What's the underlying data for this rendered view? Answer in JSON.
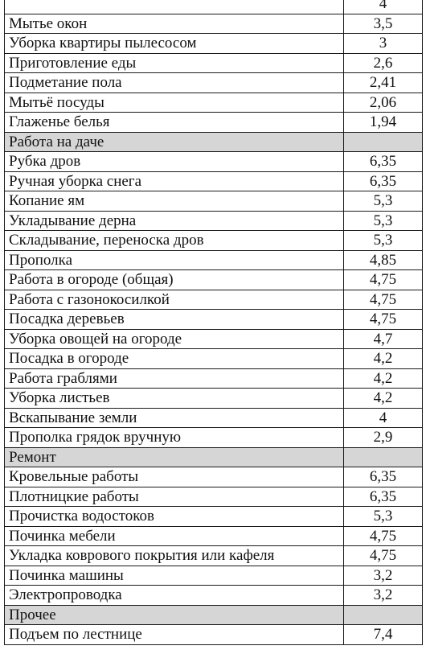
{
  "table": {
    "rows": [
      {
        "type": "item",
        "label": "",
        "value": "4"
      },
      {
        "type": "item",
        "label": "Мытье окон",
        "value": "3,5"
      },
      {
        "type": "item",
        "label": "Уборка квартиры пылесосом",
        "value": "3"
      },
      {
        "type": "item",
        "label": "Приготовление еды",
        "value": "2,6"
      },
      {
        "type": "item",
        "label": "Подметание пола",
        "value": "2,41"
      },
      {
        "type": "item",
        "label": "Мытьё посуды",
        "value": "2,06"
      },
      {
        "type": "item",
        "label": "Глаженье белья",
        "value": "1,94"
      },
      {
        "type": "section",
        "label": "Работа на даче"
      },
      {
        "type": "item",
        "label": "Рубка дров",
        "value": "6,35"
      },
      {
        "type": "item",
        "label": "Ручная уборка снега",
        "value": "6,35"
      },
      {
        "type": "item",
        "label": "Копание ям",
        "value": "5,3"
      },
      {
        "type": "item",
        "label": "Укладывание дерна",
        "value": "5,3"
      },
      {
        "type": "item",
        "label": "Складывание, переноска дров",
        "value": "5,3"
      },
      {
        "type": "item",
        "label": "Прополка",
        "value": "4,85"
      },
      {
        "type": "item",
        "label": "Работа в огороде (общая)",
        "value": "4,75"
      },
      {
        "type": "item",
        "label": "Работа с газонокосилкой",
        "value": "4,75"
      },
      {
        "type": "item",
        "label": "Посадка деревьев",
        "value": "4,75"
      },
      {
        "type": "item",
        "label": "Уборка овощей на огороде",
        "value": "4,7"
      },
      {
        "type": "item",
        "label": "Посадка в огороде",
        "value": "4,2"
      },
      {
        "type": "item",
        "label": "Работа граблями",
        "value": "4,2"
      },
      {
        "type": "item",
        "label": "Уборка листьев",
        "value": "4,2"
      },
      {
        "type": "item",
        "label": "Вскапывание земли",
        "value": "4"
      },
      {
        "type": "item",
        "label": "Прополка грядок вручную",
        "value": "2,9"
      },
      {
        "type": "section",
        "label": "Ремонт"
      },
      {
        "type": "item",
        "label": "Кровельные работы",
        "value": "6,35"
      },
      {
        "type": "item",
        "label": "Плотницкие работы",
        "value": "6,35"
      },
      {
        "type": "item",
        "label": "Прочистка водостоков",
        "value": "5,3"
      },
      {
        "type": "item",
        "label": "Починка мебели",
        "value": "4,75"
      },
      {
        "type": "item",
        "label": "Укладка коврового покрытия или кафеля",
        "value": "4,75"
      },
      {
        "type": "item",
        "label": "Починка машины",
        "value": "3,2"
      },
      {
        "type": "item",
        "label": "Электропроводка",
        "value": "3,2"
      },
      {
        "type": "section",
        "label": "Прочее"
      },
      {
        "type": "item",
        "label": "Подъем по лестнице",
        "value": "7,4"
      }
    ]
  }
}
